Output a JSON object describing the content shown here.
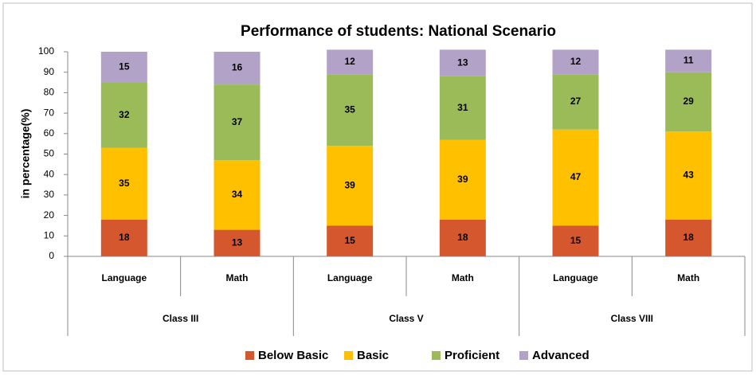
{
  "chart_data": {
    "type": "stacked_bar",
    "title": "Performance of students:  National Scenario",
    "ylabel": "in percentage(%)",
    "categories": [
      "Language",
      "Math",
      "Language",
      "Math",
      "Language",
      "Math"
    ],
    "groups": [
      "Class III",
      "Class V",
      "Class VIII"
    ],
    "series": [
      {
        "name": "Below Basic",
        "color": "#d5572d",
        "values": [
          18,
          13,
          15,
          18,
          15,
          18
        ]
      },
      {
        "name": "Basic",
        "color": "#ffc000",
        "values": [
          35,
          34,
          39,
          39,
          47,
          43
        ]
      },
      {
        "name": "Proficient",
        "color": "#9bbb59",
        "values": [
          32,
          37,
          35,
          31,
          27,
          29
        ]
      },
      {
        "name": "Advanced",
        "color": "#b3a2c7",
        "values": [
          15,
          16,
          12,
          13,
          12,
          11
        ]
      }
    ],
    "ylim": [
      0,
      100
    ],
    "yticks": [
      0,
      10,
      20,
      30,
      40,
      50,
      60,
      70,
      80,
      90,
      100
    ],
    "legend": "bottom"
  }
}
